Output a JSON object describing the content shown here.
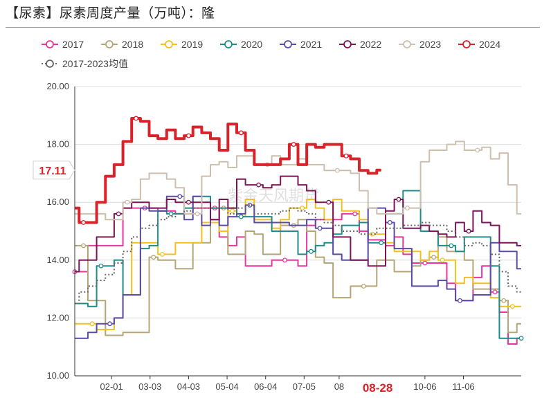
{
  "title": "【尿素】尿素周度产量（万吨）：隆",
  "watermark": "紫金天风期货",
  "chart_data": {
    "type": "line",
    "title": "【尿素】尿素周度产量（万吨）：隆",
    "xlabel": "",
    "ylabel": "",
    "ylim": [
      10,
      20
    ],
    "yticks": [
      "10.00",
      "12.00",
      "14.00",
      "16.00",
      "18.00",
      "20.00"
    ],
    "x_range": [
      1,
      52
    ],
    "xticks": [
      {
        "label": "02-01",
        "x": 5.2
      },
      {
        "label": "03-03",
        "x": 9.6
      },
      {
        "label": "04-03",
        "x": 14.0
      },
      {
        "label": "05-04",
        "x": 18.4
      },
      {
        "label": "06-04",
        "x": 22.8
      },
      {
        "label": "07-05",
        "x": 27.2
      },
      {
        "label": "08",
        "x": 31.2
      },
      {
        "label": "10-06",
        "x": 41.0
      },
      {
        "label": "11-06",
        "x": 45.4
      }
    ],
    "highlight_x": {
      "label": "08-28",
      "x": 35.6
    },
    "current_value": {
      "label": "17.11",
      "value": 17.11
    },
    "grid": "horizontal",
    "legend_position": "top",
    "series": [
      {
        "name": "2017",
        "color": "#e8359e",
        "values": [
          13.6,
          13.6,
          14.5,
          14.5,
          14.5,
          14.5,
          15.8,
          15.8,
          15.8,
          15.8,
          15.7,
          15.7,
          15.6,
          15.6,
          15.8,
          15.8,
          15.8,
          14.8,
          14.5,
          14.8,
          13.8,
          13.8,
          13.8,
          14.0,
          14.0,
          14.0,
          13.8,
          15.2,
          15.4,
          15.4,
          15.4,
          15.6,
          15.6,
          15.0,
          14.7,
          14.7,
          14.5,
          14.8,
          14.2,
          13.9,
          13.9,
          13.9,
          13.9,
          13.2,
          12.6,
          12.6,
          13.4,
          13.8,
          12.9,
          12.2,
          11.1,
          11.3
        ]
      },
      {
        "name": "2018",
        "color": "#b4a676",
        "values": [
          14.5,
          14.5,
          12.6,
          12.6,
          11.4,
          11.4,
          11.5,
          11.5,
          11.5,
          14.1,
          14.0,
          14.0,
          13.7,
          13.7,
          14.6,
          14.6,
          15.8,
          15.8,
          14.2,
          14.2,
          15.0,
          14.9,
          14.2,
          14.2,
          15.2,
          15.2,
          15.4,
          15.0,
          14.1,
          13.9,
          12.7,
          12.7,
          13.1,
          13.1,
          13.1,
          14.0,
          14.0,
          13.6,
          13.6,
          13.8,
          14.0,
          14.1,
          14.8,
          14.3,
          14.3,
          14.0,
          13.0,
          13.0,
          13.0,
          12.6,
          11.5,
          11.8
        ]
      },
      {
        "name": "2019",
        "color": "#f2c01e",
        "values": [
          11.8,
          11.8,
          11.8,
          11.6,
          11.6,
          12.0,
          12.8,
          14.6,
          14.6,
          14.6,
          14.2,
          14.2,
          14.6,
          14.6,
          14.6,
          15.3,
          15.3,
          15.0,
          15.7,
          15.5,
          16.1,
          15.4,
          15.4,
          15.1,
          15.4,
          15.8,
          15.8,
          16.1,
          15.8,
          15.4,
          16.1,
          15.7,
          15.7,
          15.4,
          14.9,
          14.9,
          14.6,
          14.3,
          14.3,
          14.3,
          14.0,
          14.3,
          14.0,
          14.0,
          13.2,
          13.4,
          13.2,
          13.2,
          12.7,
          12.4,
          12.4,
          12.4
        ]
      },
      {
        "name": "2020",
        "color": "#1f8c8c",
        "values": [
          12.5,
          12.5,
          12.4,
          13.8,
          13.8,
          14.0,
          12.8,
          12.8,
          14.4,
          14.5,
          15.7,
          15.6,
          15.6,
          15.8,
          16.2,
          16.2,
          15.8,
          15.8,
          15.8,
          15.5,
          15.5,
          15.5,
          15.5,
          15.0,
          15.0,
          15.0,
          14.2,
          14.3,
          14.5,
          14.6,
          14.9,
          15.2,
          15.2,
          15.3,
          14.6,
          14.6,
          15.6,
          15.6,
          16.4,
          16.4,
          15.0,
          15.0,
          14.5,
          14.5,
          14.3,
          14.8,
          14.8,
          14.8,
          13.8,
          11.3,
          11.3,
          11.3
        ]
      },
      {
        "name": "2021",
        "color": "#5b4aa6",
        "values": [
          11.3,
          11.3,
          11.5,
          11.8,
          11.8,
          12.0,
          12.8,
          12.8,
          15.8,
          15.7,
          15.7,
          16.2,
          16.2,
          15.4,
          16.2,
          15.2,
          15.4,
          15.2,
          15.5,
          15.6,
          15.9,
          15.3,
          15.3,
          15.3,
          15.3,
          15.2,
          15.2,
          15.4,
          15.1,
          15.1,
          14.2,
          14.0,
          14.0,
          14.0,
          15.8,
          15.8,
          15.3,
          14.4,
          14.4,
          13.1,
          13.1,
          13.1,
          13.3,
          13.0,
          12.6,
          12.6,
          12.8,
          12.8,
          14.6,
          14.3,
          14.3,
          13.7
        ]
      },
      {
        "name": "2022",
        "color": "#7c1557",
        "values": [
          13.6,
          14.0,
          14.0,
          14.8,
          14.8,
          15.6,
          15.8,
          16.0,
          16.0,
          15.8,
          15.8,
          16.1,
          16.0,
          16.0,
          16.0,
          16.0,
          15.4,
          16.1,
          15.8,
          16.8,
          16.6,
          16.6,
          16.5,
          16.6,
          16.9,
          16.9,
          16.6,
          16.4,
          16.0,
          16.0,
          14.8,
          14.8,
          14.0,
          14.0,
          13.8,
          13.8,
          15.7,
          16.1,
          15.1,
          15.1,
          15.2,
          15.0,
          14.9,
          14.8,
          15.3,
          15.0,
          15.7,
          15.3,
          15.2,
          14.6,
          14.6,
          14.5
        ]
      },
      {
        "name": "2023",
        "color": "#cdbfae",
        "values": [
          15.6,
          15.6,
          15.6,
          15.6,
          15.4,
          15.4,
          16.0,
          16.1,
          16.8,
          17.0,
          17.0,
          16.8,
          16.5,
          15.6,
          15.6,
          16.9,
          17.3,
          17.4,
          17.2,
          17.6,
          17.6,
          17.3,
          17.3,
          17.6,
          17.3,
          17.3,
          17.5,
          17.3,
          17.3,
          17.1,
          17.1,
          17.1,
          17.0,
          16.4,
          15.8,
          15.6,
          15.6,
          15.6,
          15.8,
          15.8,
          17.4,
          17.8,
          17.8,
          18.0,
          18.1,
          17.8,
          17.8,
          17.9,
          17.5,
          17.7,
          16.6,
          15.6
        ]
      },
      {
        "name": "2024",
        "color": "#d9222a",
        "values": [
          15.8,
          15.3,
          15.3,
          16.0,
          16.9,
          17.3,
          18.1,
          18.9,
          18.8,
          18.3,
          18.2,
          18.5,
          18.2,
          18.3,
          18.6,
          18.4,
          18.2,
          17.8,
          18.7,
          18.4,
          17.8,
          17.3,
          17.3,
          17.3,
          17.5,
          18.0,
          17.3,
          18.0,
          17.9,
          18.0,
          18.0,
          17.6,
          17.5,
          17.1,
          17.0,
          17.11
        ]
      },
      {
        "name": "2017-2023均值",
        "color": "#666666",
        "dashed": true,
        "values": [
          12.5,
          12.9,
          13.1,
          13.3,
          13.5,
          13.9,
          14.3,
          14.8,
          15.1,
          15.2,
          15.4,
          15.5,
          15.6,
          15.7,
          15.8,
          15.8,
          15.8,
          15.8,
          15.6,
          15.8,
          15.9,
          15.6,
          15.6,
          15.6,
          15.7,
          15.8,
          15.7,
          15.6,
          15.4,
          15.3,
          15.2,
          15.0,
          15.0,
          14.9,
          14.9,
          15.1,
          15.1,
          15.1,
          15.2,
          15.2,
          15.3,
          15.2,
          15.2,
          15.0,
          14.8,
          14.5,
          14.6,
          14.5,
          14.2,
          13.6,
          13.1,
          12.9
        ]
      }
    ]
  }
}
